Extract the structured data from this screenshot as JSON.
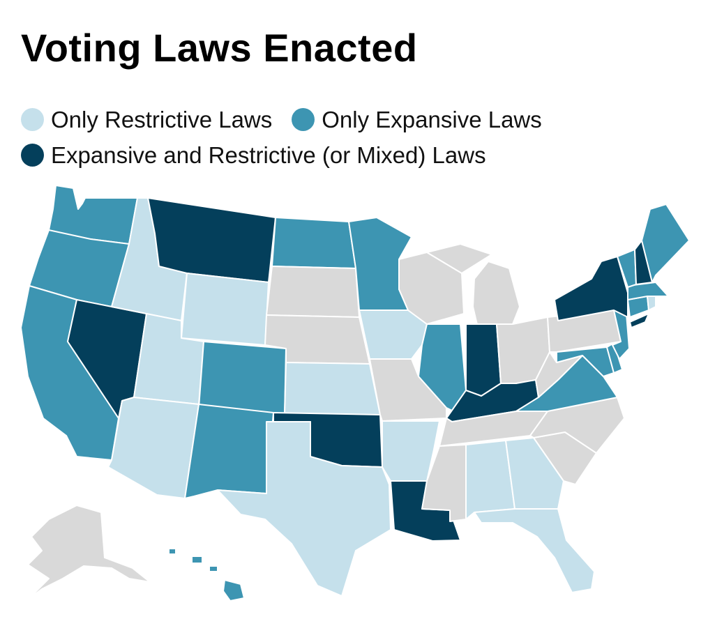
{
  "title": "Voting Laws Enacted",
  "colors": {
    "restrictive": "#c5e0eb",
    "expansive": "#3d95b2",
    "mixed": "#043f5b",
    "none": "#d9d9d9"
  },
  "legend": [
    {
      "key": "restrictive",
      "label": "Only Restrictive Laws"
    },
    {
      "key": "expansive",
      "label": "Only Expansive Laws"
    },
    {
      "key": "mixed",
      "label": "Expansive and Restrictive (or Mixed) Laws"
    }
  ],
  "states": {
    "WA": "expansive",
    "OR": "expansive",
    "CA": "expansive",
    "NV": "mixed",
    "ID": "restrictive",
    "MT": "mixed",
    "WY": "restrictive",
    "UT": "restrictive",
    "AZ": "restrictive",
    "CO": "expansive",
    "NM": "expansive",
    "ND": "expansive",
    "SD": "none",
    "NE": "none",
    "KS": "restrictive",
    "OK": "mixed",
    "TX": "restrictive",
    "MN": "expansive",
    "IA": "restrictive",
    "MO": "none",
    "AR": "restrictive",
    "LA": "mixed",
    "WI": "none",
    "IL": "expansive",
    "MI": "none",
    "IN": "mixed",
    "OH": "none",
    "KY": "mixed",
    "TN": "none",
    "MS": "none",
    "AL": "restrictive",
    "GA": "restrictive",
    "FL": "restrictive",
    "SC": "none",
    "NC": "none",
    "VA": "expansive",
    "WV": "none",
    "PA": "none",
    "NY": "mixed",
    "NJ": "expansive",
    "DE": "expansive",
    "MD": "expansive",
    "CT": "expansive",
    "RI": "restrictive",
    "MA": "expansive",
    "VT": "expansive",
    "NH": "mixed",
    "ME": "expansive",
    "AK": "none",
    "HI": "expansive"
  }
}
